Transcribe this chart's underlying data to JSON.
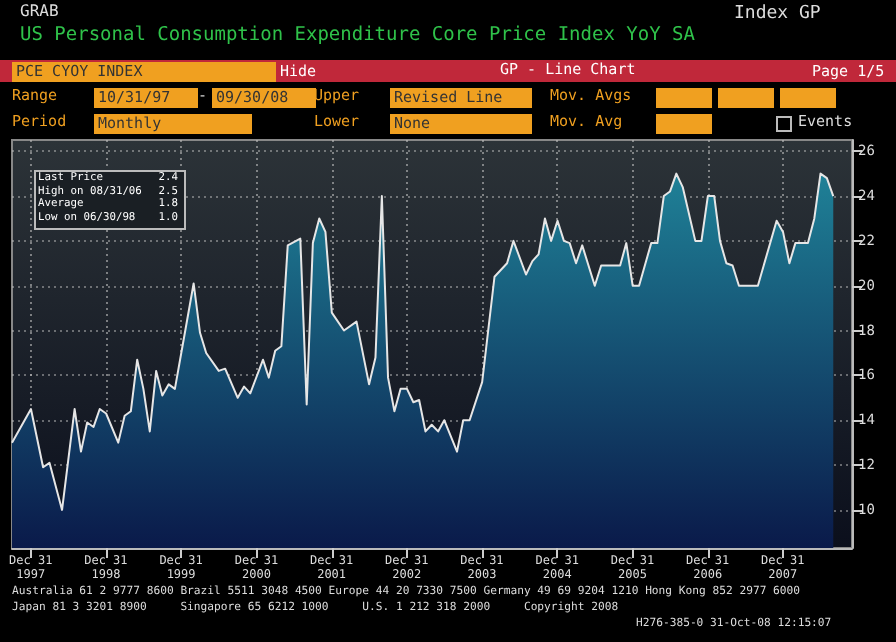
{
  "chart_data": {
    "type": "area",
    "title": "US Personal Consumption Expenditure Core Price Index YoY SA",
    "annotations": [
      "GRAB",
      "Index GP",
      "PCE CYOY INDEX",
      "Hide",
      "GP - Line Chart",
      "Page 1/5",
      "Range",
      "10/31/97",
      "-",
      "09/30/08",
      "Upper",
      "Revised Line",
      "Mov. Avgs",
      "Period",
      "Monthly",
      "Lower",
      "None",
      "Mov. Avg",
      "Events",
      "Last Price 2.4",
      "High on 08/31/06 2.5",
      "Average 1.8",
      "Low on 06/30/98 1.0",
      "Australia 61 2 9777 8600 Brazil 5511 3048 4500 Europe 44 20 7330 7500 Germany 49 69 9204 1210 Hong Kong 852 2977 6000",
      "Japan 81 3 3201 8900     Singapore 65 6212 1000     U.S. 1 212 318 2000     Copyright 2008",
      "H276-385-0 31-Oct-08 12:15:07"
    ],
    "x": [
      "1997-10",
      "1998-01",
      "1998-03",
      "1998-04",
      "1998-06",
      "1998-08",
      "1998-09",
      "1998-10",
      "1998-11",
      "1998-12",
      "1999-01",
      "1999-03",
      "1999-04",
      "1999-05",
      "1999-06",
      "1999-07",
      "1999-08",
      "1999-09",
      "1999-10",
      "1999-11",
      "1999-12",
      "2000-01",
      "2000-03",
      "2000-04",
      "2000-05",
      "2000-07",
      "2000-08",
      "2000-10",
      "2000-11",
      "2000-12",
      "2001-02",
      "2001-03",
      "2001-04",
      "2001-05",
      "2001-06",
      "2001-08",
      "2001-09",
      "2001-10",
      "2001-11",
      "2001-12",
      "2002-01",
      "2002-03",
      "2002-05",
      "2002-07",
      "2002-08",
      "2002-09",
      "2002-10",
      "2002-11",
      "2002-12",
      "2003-01",
      "2003-02",
      "2003-03",
      "2003-04",
      "2003-05",
      "2003-06",
      "2003-07",
      "2003-09",
      "2003-10",
      "2003-11",
      "2004-01",
      "2004-03",
      "2004-05",
      "2004-06",
      "2004-08",
      "2004-09",
      "2004-10",
      "2004-11",
      "2004-12",
      "2005-01",
      "2005-02",
      "2005-03",
      "2005-04",
      "2005-05",
      "2005-07",
      "2005-08",
      "2005-11",
      "2005-12",
      "2006-01",
      "2006-02",
      "2006-04",
      "2006-05",
      "2006-06",
      "2006-07",
      "2006-08",
      "2006-09",
      "2006-11",
      "2006-12",
      "2007-01",
      "2007-02",
      "2007-03",
      "2007-04",
      "2007-05",
      "2007-06",
      "2007-09",
      "2007-12",
      "2008-01",
      "2008-02",
      "2008-03",
      "2008-05",
      "2008-06",
      "2008-07",
      "2008-08",
      "2008-09"
    ],
    "series": [
      {
        "color": "#1f8197",
        "values": [
          13.0,
          14.5,
          11.9,
          12.1,
          10.0,
          14.5,
          12.6,
          13.9,
          13.7,
          14.5,
          14.3,
          13.0,
          14.2,
          14.4,
          16.7,
          15.4,
          13.5,
          16.2,
          15.1,
          15.6,
          15.4,
          17.0,
          20.1,
          17.9,
          17.0,
          16.2,
          16.3,
          15.0,
          15.5,
          15.2,
          16.7,
          15.9,
          17.1,
          17.3,
          21.8,
          22.1,
          14.7,
          21.9,
          23.0,
          22.4,
          18.8,
          18.0,
          18.4,
          15.6,
          16.8,
          24.0,
          15.9,
          14.4,
          15.4,
          15.4,
          14.8,
          14.9,
          13.5,
          13.8,
          13.5,
          14.0,
          12.6,
          14.0,
          14.0,
          15.7,
          20.4,
          21.0,
          22.0,
          20.5,
          21.1,
          21.4,
          23.0,
          22.0,
          22.9,
          22.0,
          21.9,
          21.0,
          21.8,
          20.0,
          20.9,
          20.9,
          21.9,
          20.0,
          20.0,
          21.9,
          21.9,
          24.0,
          24.2,
          25.0,
          24.4,
          22.0,
          22.0,
          24.0,
          24.0,
          22.0,
          21.0,
          20.9,
          20.0,
          20.0,
          22.9,
          22.4,
          21.0,
          21.9,
          21.9,
          23.0,
          25.0,
          24.8,
          24.0
        ]
      }
    ],
    "xlim": [
      "1997-10",
      "2008-12"
    ],
    "xticks": [
      {
        "value": "1997-12-31",
        "label": "Dec 31\n1997"
      },
      {
        "value": "1998-12-31",
        "label": "Dec 31\n1998"
      },
      {
        "value": "1999-12-31",
        "label": "Dec 31\n1999"
      },
      {
        "value": "2000-12-31",
        "label": "Dec 31\n2000"
      },
      {
        "value": "2001-12-31",
        "label": "Dec 31\n2001"
      },
      {
        "value": "2002-12-31",
        "label": "Dec 31\n2002"
      },
      {
        "value": "2003-12-31",
        "label": "Dec 31\n2003"
      },
      {
        "value": "2004-12-31",
        "label": "Dec 31\n2004"
      },
      {
        "value": "2005-12-31",
        "label": "Dec 31\n2005"
      },
      {
        "value": "2006-12-31",
        "label": "Dec 31\n2006"
      },
      {
        "value": "2007-12-31",
        "label": "Dec 31\n2007"
      }
    ],
    "ylim": [
      8.3,
      26.5
    ],
    "yticks": [
      10,
      12,
      14,
      16,
      18,
      20,
      22,
      24,
      26
    ],
    "grid": true,
    "marker": "none",
    "line_style": "solid"
  }
}
